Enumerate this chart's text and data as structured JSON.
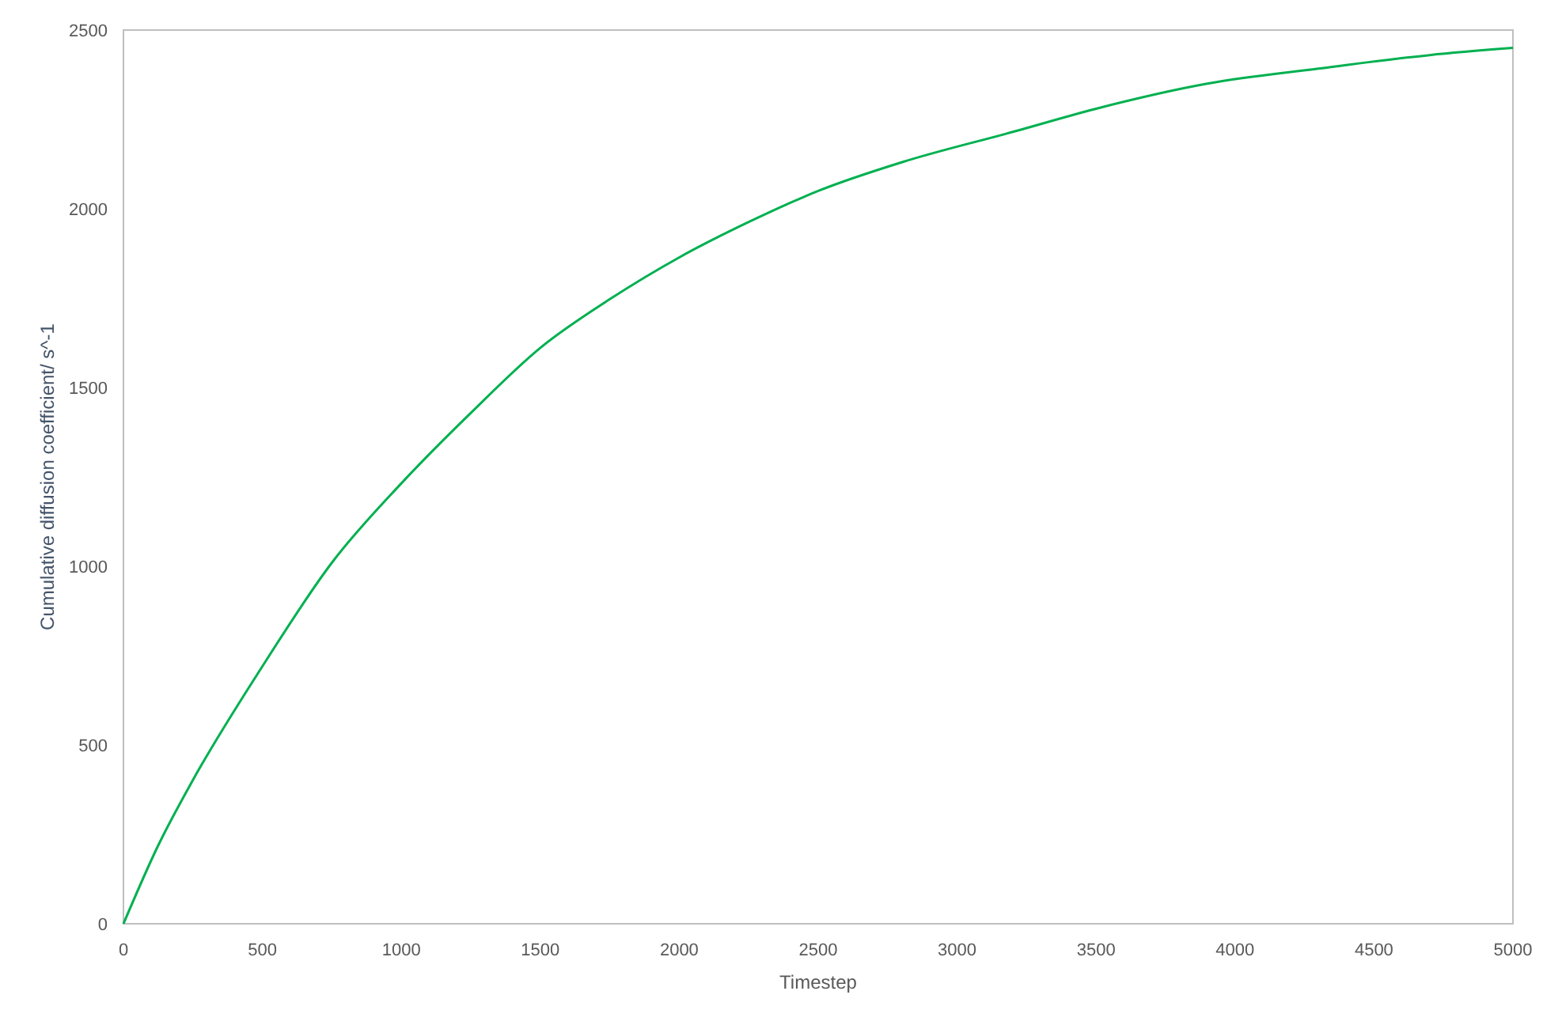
{
  "chart_data": {
    "type": "line",
    "xlabel": "Timestep",
    "ylabel": "Cumulative diffusion coefficient/ s^-1",
    "x": [
      0,
      125,
      250,
      500,
      750,
      1000,
      1250,
      1500,
      1750,
      2000,
      2250,
      2500,
      2800,
      3200,
      3500,
      3900,
      4300,
      4700,
      5000
    ],
    "series": [
      {
        "color": "#00b050",
        "values": [
          0,
          219,
          402,
          720,
          1010,
          1232,
          1429,
          1611,
          1747,
          1864,
          1963,
          2050,
          2130,
          2215,
          2280,
          2350,
          2392,
          2430,
          2450
        ]
      }
    ],
    "xlim": [
      0,
      5000
    ],
    "xticks": [
      0,
      500,
      1000,
      1500,
      2000,
      2500,
      3000,
      3500,
      4000,
      4500,
      5000
    ],
    "ylim": [
      0,
      2500
    ],
    "yticks": [
      0,
      500,
      1000,
      1500,
      2000,
      2500
    ],
    "grid": false,
    "marker": "none",
    "line_style": "solid"
  }
}
